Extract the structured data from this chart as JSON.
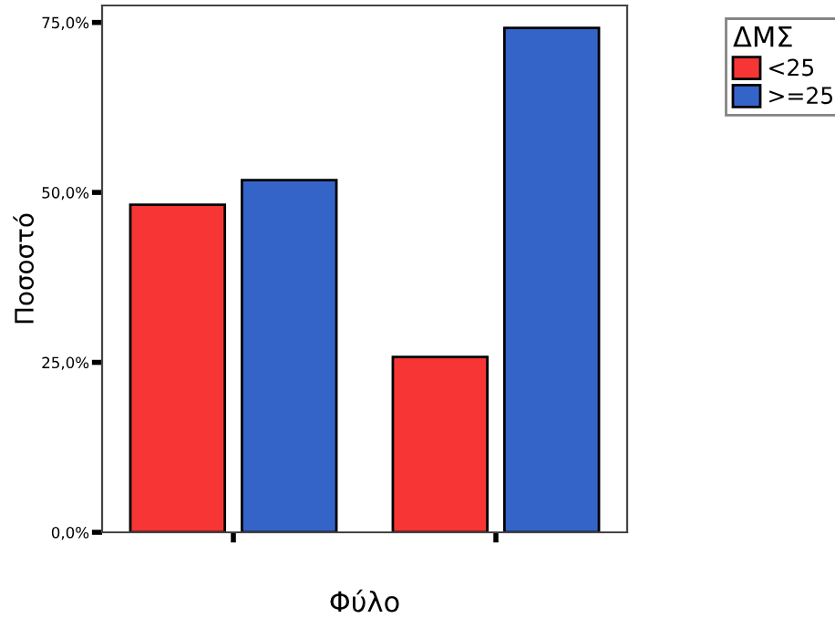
{
  "chart_data": {
    "type": "bar",
    "xlabel": "Φύλο",
    "ylabel": "Ποσοστό",
    "legend_title": "ΔΜΣ",
    "categories": [
      null,
      null
    ],
    "series": [
      {
        "name": "<25",
        "color": "#f73535",
        "values": [
          48.2,
          25.8
        ]
      },
      {
        "name": ">=25",
        "color": "#3564c9",
        "values": [
          51.8,
          74.2
        ]
      }
    ],
    "ylim": [
      0,
      77.5
    ],
    "yticks": [
      {
        "value": 0,
        "label": "0,0%"
      },
      {
        "value": 25,
        "label": "25,0%"
      },
      {
        "value": 50,
        "label": "50,0%"
      },
      {
        "value": 75,
        "label": "75,0%"
      }
    ],
    "grid": false,
    "legend": "top right"
  }
}
